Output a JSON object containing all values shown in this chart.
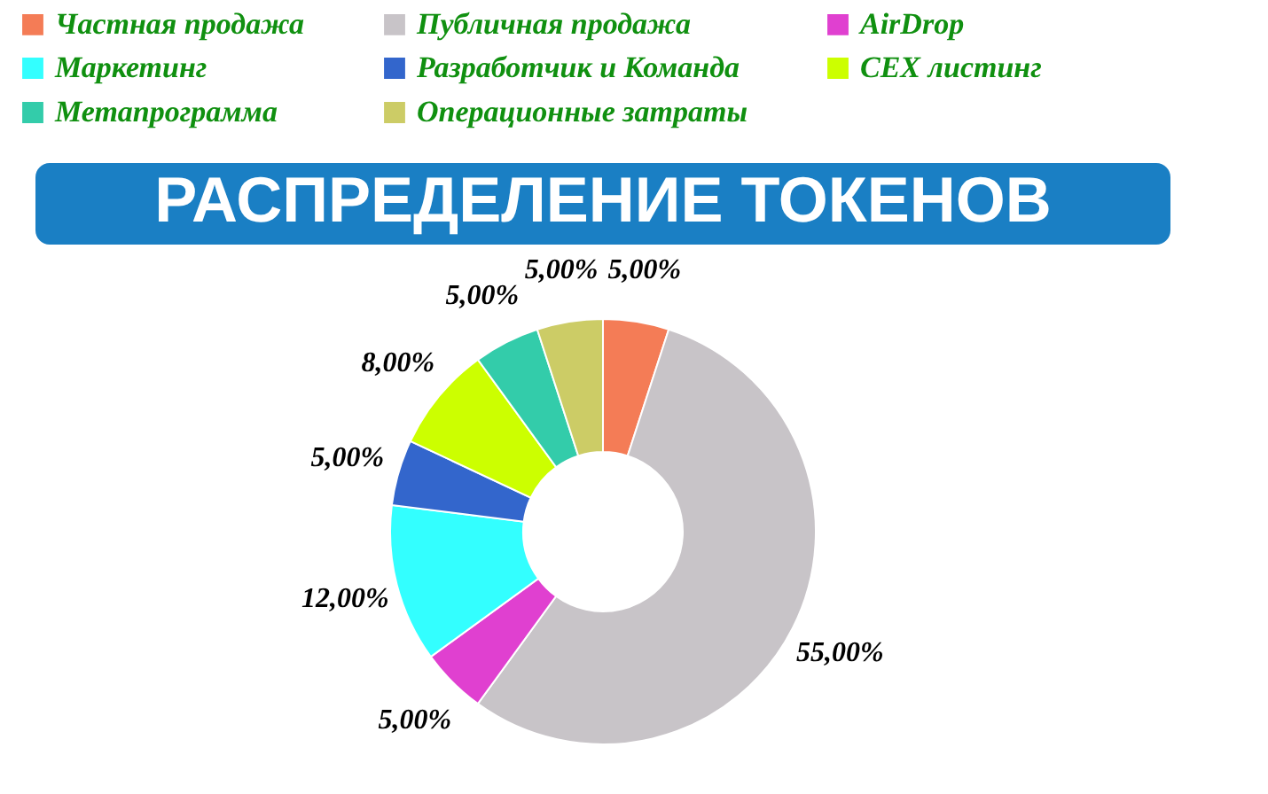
{
  "chart_data": {
    "type": "donut",
    "title": "РАСПРЕДЕЛЕНИЕ ТОКЕНОВ",
    "categories": [
      "Частная продажа",
      "Публичная продажа",
      "AirDrop",
      "Маркетинг",
      "Разработчик и Команда",
      "CEX листинг",
      "Метапрограмма",
      "Операционные затраты"
    ],
    "values": [
      5,
      55,
      5,
      12,
      5,
      8,
      5,
      5
    ],
    "value_labels": [
      "5,00%",
      "55,00%",
      "5,00%",
      "12,00%",
      "5,00%",
      "8,00%",
      "5,00%",
      "5,00%"
    ],
    "colors": [
      "#f47c56",
      "#c8c4c8",
      "#e040d0",
      "#33ffff",
      "#3366cc",
      "#ccff00",
      "#33ccaa",
      "#cccc66"
    ],
    "legend": "top"
  }
}
